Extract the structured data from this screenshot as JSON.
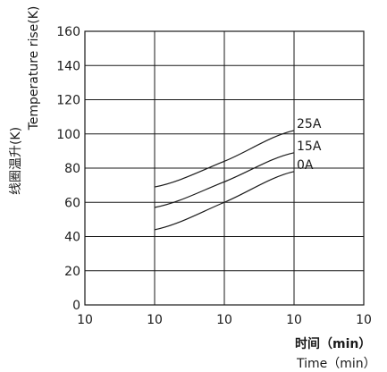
{
  "chart_data": {
    "type": "line",
    "y_axis": {
      "label_cn": "线圈温升(K)",
      "label_en": "Temperature rise(K)",
      "ylim": [
        0,
        160
      ],
      "ticks": [
        "0",
        "20",
        "40",
        "60",
        "80",
        "100",
        "120",
        "140",
        "160"
      ],
      "tick_values": [
        0,
        20,
        40,
        60,
        80,
        100,
        120,
        140,
        160
      ]
    },
    "x_axis": {
      "label_cn": "时间（min）",
      "label_en": "Time（min）",
      "ticks": [
        "10",
        "10",
        "10",
        "10",
        "10"
      ],
      "tick_positions": [
        0,
        1,
        2,
        3,
        4
      ]
    },
    "grid": true,
    "series": [
      {
        "name": "25A",
        "x": [
          1,
          2,
          3
        ],
        "values": [
          69,
          84,
          102
        ]
      },
      {
        "name": "15A",
        "x": [
          1,
          2,
          3
        ],
        "values": [
          57,
          72,
          89
        ]
      },
      {
        "name": "0A",
        "x": [
          1,
          2,
          3
        ],
        "values": [
          44,
          60,
          78
        ]
      }
    ]
  }
}
